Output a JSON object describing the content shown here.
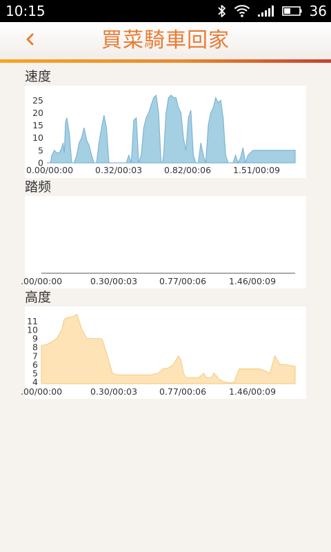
{
  "status_bar": {
    "time": "10:15",
    "battery": "36",
    "icons": [
      "bluetooth-icon",
      "wifi-icon",
      "signal-icon",
      "battery-icon"
    ]
  },
  "header": {
    "title": "買菜騎車回家",
    "back_icon": "chevron-left-icon",
    "accent_colors": [
      "#f5a623",
      "#c8402c"
    ],
    "title_color": "#ea7b33"
  },
  "charts": {
    "speed": {
      "label": "速度"
    },
    "cadence": {
      "label": "踏频"
    },
    "altitude": {
      "label": "高度"
    }
  },
  "chart_data": [
    {
      "id": "speed",
      "type": "area",
      "title": "速度",
      "color": "#a5cfe3",
      "stroke": "#7db6d3",
      "x_tick_labels": [
        "0.00/00:00",
        "0.32/00:03",
        "0.82/00:06",
        "1.51/00:09"
      ],
      "y_ticks": [
        0,
        5,
        10,
        15,
        20,
        25
      ],
      "ylim": [
        0,
        27
      ],
      "x": [
        0,
        1.5,
        2,
        3,
        4,
        5,
        6,
        6.5,
        7,
        7.5,
        8,
        9,
        10,
        11,
        12,
        13,
        14,
        15,
        16,
        17,
        18,
        19,
        20,
        21,
        22,
        23,
        24,
        25,
        26,
        27,
        28,
        29,
        30,
        31,
        32,
        33,
        34,
        35,
        36,
        37,
        38,
        39,
        40,
        41,
        42,
        43,
        44,
        45,
        46,
        46.5,
        47,
        48,
        49,
        50,
        51,
        52,
        53,
        54,
        55,
        56,
        57,
        58,
        59,
        60,
        61,
        62,
        63,
        64,
        65,
        66,
        67,
        68,
        69,
        70,
        71,
        72,
        73,
        74,
        75,
        76,
        77,
        78,
        79,
        80,
        81,
        82,
        83,
        84,
        85,
        86,
        87,
        88,
        89,
        90,
        91,
        92,
        93,
        94,
        95,
        96,
        97,
        98,
        99,
        100
      ],
      "values": [
        0,
        0,
        3,
        5,
        4,
        4,
        6,
        8,
        4,
        16,
        18,
        12,
        0,
        0,
        3,
        8,
        10,
        14,
        9,
        7,
        3,
        0,
        0,
        8,
        14,
        19,
        14,
        0,
        0,
        0,
        0,
        0,
        0,
        0,
        0,
        3,
        0,
        17,
        18,
        0,
        3,
        14,
        18,
        20,
        23,
        26,
        27,
        20,
        0,
        0,
        3,
        20,
        26,
        27,
        26,
        26,
        22,
        20,
        10,
        5,
        18,
        21,
        3,
        0,
        0,
        8,
        3,
        0,
        15,
        20,
        22,
        26,
        24,
        25,
        18,
        3,
        0,
        0,
        0,
        3,
        0,
        2,
        6,
        0,
        3,
        4,
        5,
        5,
        5,
        5,
        5,
        5,
        5,
        5,
        5,
        5,
        5,
        5,
        5,
        5,
        5,
        5,
        5,
        5
      ]
    },
    {
      "id": "cadence",
      "type": "area",
      "title": "踏频",
      "x_tick_labels": [
        ".00/00:00",
        "0.30/00:03",
        "0.77/00:06",
        "1.46/00:09"
      ],
      "values": []
    },
    {
      "id": "altitude",
      "type": "area",
      "title": "高度",
      "color": "#fde3b6",
      "stroke": "#f7cf8a",
      "x_tick_labels": [
        ".00/00:00",
        "0.30/00:03",
        "0.77/00:06",
        "1.46/00:09"
      ],
      "y_ticks": [
        4,
        5,
        6,
        7,
        8,
        9,
        10,
        11
      ],
      "ylim": [
        3.8,
        11.6
      ],
      "x": [
        0,
        2,
        4,
        6,
        8,
        9,
        10,
        12,
        13,
        14,
        16,
        18,
        21,
        23,
        24,
        26,
        28,
        30,
        31,
        33,
        35,
        38,
        40,
        43,
        46,
        48,
        50,
        52,
        54,
        55,
        56,
        57,
        58,
        60,
        62,
        64,
        65,
        66,
        67,
        68,
        69,
        70,
        72,
        74,
        75,
        76,
        77,
        78,
        79,
        80,
        81,
        82,
        83,
        84,
        86,
        88,
        90,
        91,
        92,
        94,
        96,
        98,
        100
      ],
      "values": [
        8.2,
        8.3,
        8.6,
        9.0,
        10.0,
        11.2,
        11.4,
        11.5,
        11.6,
        11.8,
        10.0,
        9.0,
        9.0,
        9.0,
        8.9,
        7.0,
        5.0,
        4.8,
        4.8,
        4.8,
        4.8,
        4.8,
        4.8,
        4.8,
        5.0,
        5.5,
        5.6,
        6.0,
        7.0,
        6.5,
        5.0,
        4.5,
        4.5,
        4.5,
        4.5,
        5.0,
        4.5,
        4.5,
        4.5,
        5.0,
        4.7,
        4.3,
        4.0,
        3.9,
        3.9,
        4.0,
        4.8,
        5.5,
        5.5,
        5.5,
        5.5,
        5.5,
        5.5,
        5.5,
        5.5,
        5.3,
        5.0,
        6.0,
        7.0,
        6.0,
        6.0,
        5.9,
        5.8
      ]
    }
  ]
}
